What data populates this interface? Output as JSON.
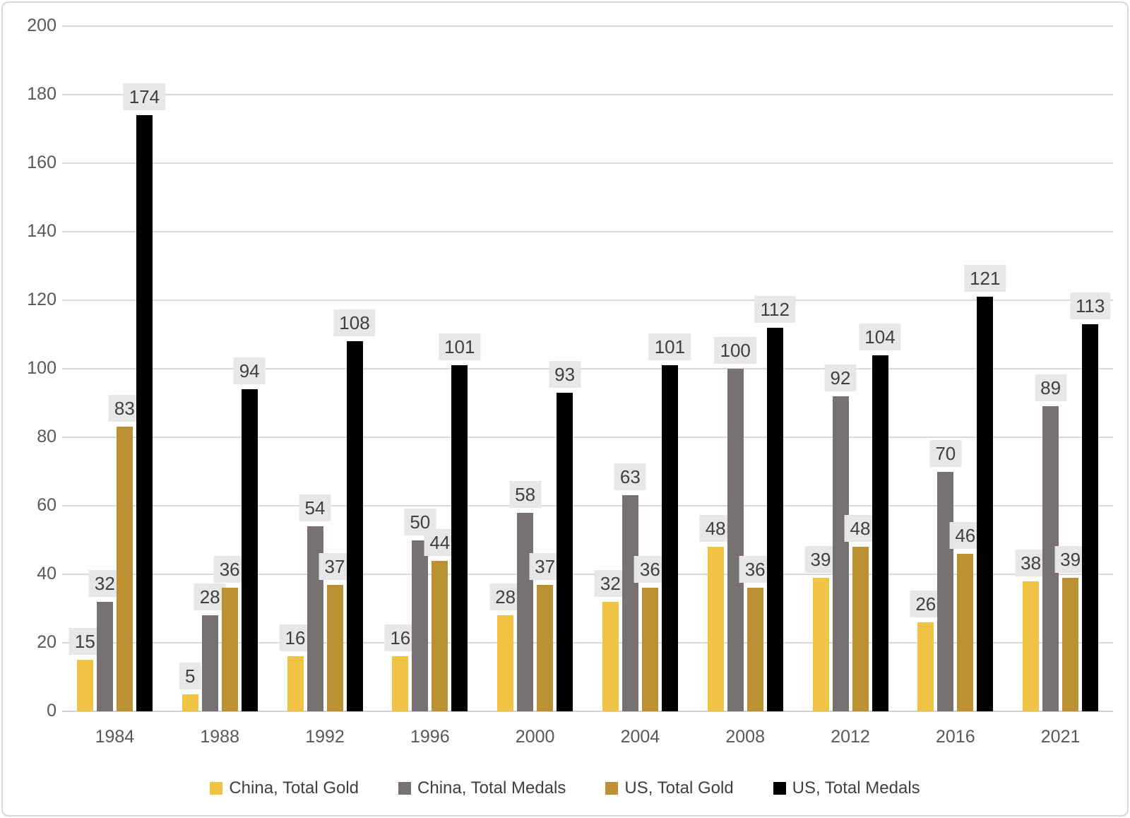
{
  "chart_data": {
    "type": "bar",
    "title": "",
    "xlabel": "",
    "ylabel": "",
    "categories": [
      "1984",
      "1988",
      "1992",
      "1996",
      "2000",
      "2004",
      "2008",
      "2012",
      "2016",
      "2021"
    ],
    "series": [
      {
        "name": "China, Total Gold",
        "color": "#f1c344",
        "values": [
          15,
          5,
          16,
          16,
          28,
          32,
          48,
          39,
          26,
          38
        ]
      },
      {
        "name": "China, Total Medals",
        "color": "#777171",
        "values": [
          32,
          28,
          54,
          50,
          58,
          63,
          100,
          92,
          70,
          89
        ]
      },
      {
        "name": "US, Total Gold",
        "color": "#bc9133",
        "values": [
          83,
          36,
          37,
          44,
          37,
          36,
          36,
          48,
          46,
          39
        ]
      },
      {
        "name": "US, Total Medals",
        "color": "#000000",
        "values": [
          174,
          94,
          108,
          101,
          93,
          101,
          112,
          104,
          121,
          113
        ]
      }
    ],
    "ylim": [
      0,
      200
    ],
    "ytick_step": 20,
    "yticks": [
      0,
      20,
      40,
      60,
      80,
      100,
      120,
      140,
      160,
      180,
      200
    ],
    "grid": true,
    "data_labels": true,
    "data_label_bg": "#e8e7e7",
    "gridline_color": "#d9d9d9",
    "tick_color": "#595959",
    "legend_position": "bottom"
  }
}
